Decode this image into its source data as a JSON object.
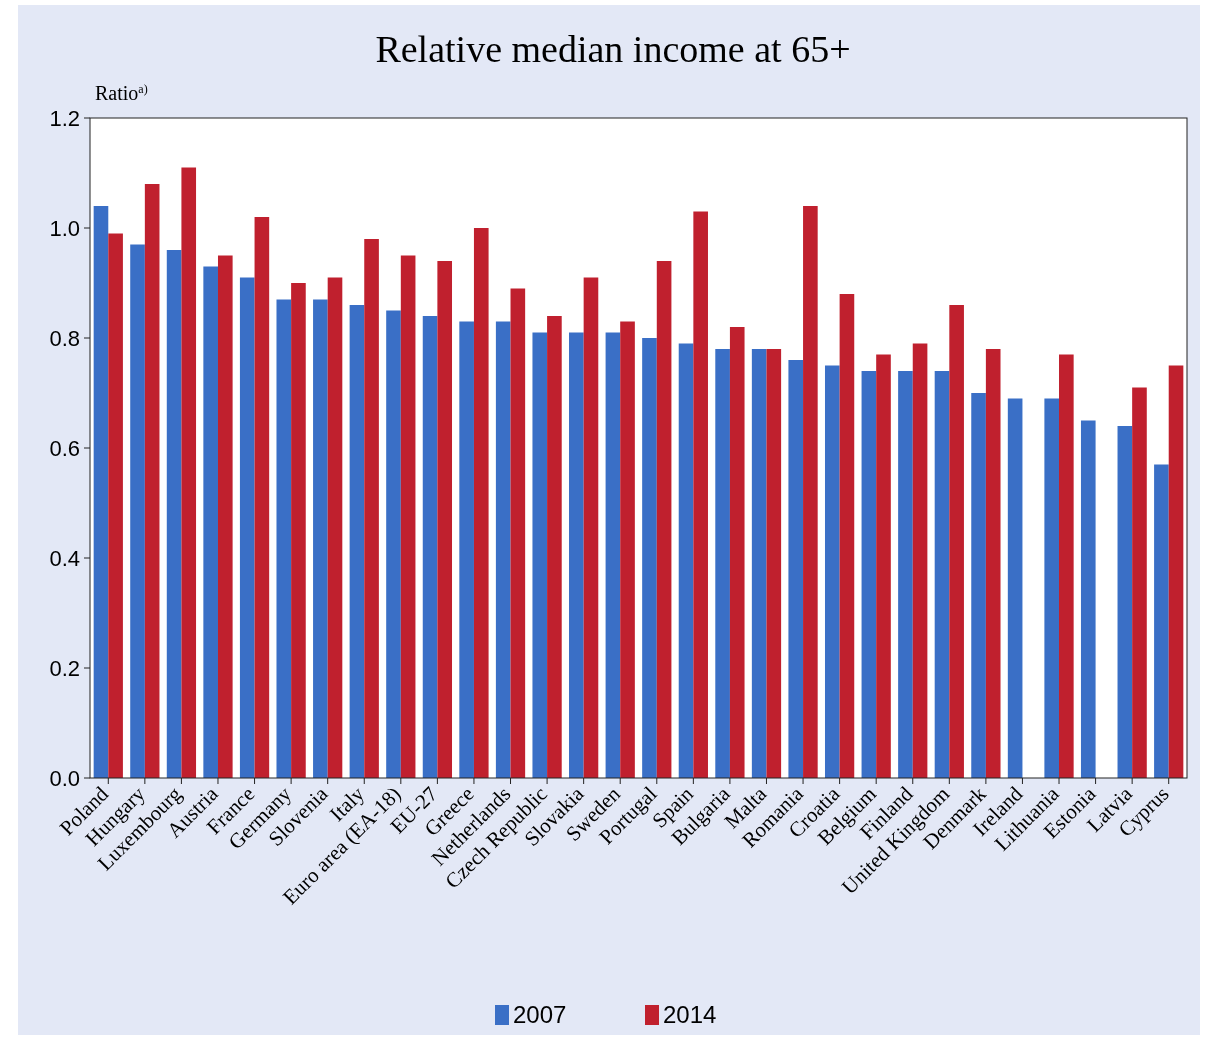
{
  "chart_data": {
    "type": "bar",
    "title": "Relative median income at 65+",
    "ylabel": "Ratio$^{a)}$",
    "categories": [
      "Poland",
      "Hungary",
      "Luxembourg",
      "Austria",
      "France",
      "Germany",
      "Slovenia",
      "Italy",
      "Euro area (EA-18)",
      "EU-27",
      "Greece",
      "Netherlands",
      "Czech Republic",
      "Slovakia",
      "Sweden",
      "Portugal",
      "Spain",
      "Bulgaria",
      "Malta",
      "Romania",
      "Croatia",
      "Belgium",
      "Finland",
      "United Kingdom",
      "Denmark",
      "Ireland",
      "Lithuania",
      "Estonia",
      "Latvia",
      "Cyprus"
    ],
    "series": [
      {
        "name": "2007",
        "color": "#3a6fc6",
        "values": [
          1.04,
          0.97,
          0.96,
          0.93,
          0.91,
          0.87,
          0.87,
          0.86,
          0.85,
          0.84,
          0.83,
          0.83,
          0.81,
          0.81,
          0.81,
          0.8,
          0.79,
          0.78,
          0.78,
          0.76,
          0.75,
          0.74,
          0.74,
          0.74,
          0.7,
          0.69,
          0.69,
          0.65,
          0.64,
          0.57
        ]
      },
      {
        "name": "2014",
        "color": "#c0202e",
        "values": [
          0.99,
          1.08,
          1.11,
          0.95,
          1.02,
          0.9,
          0.91,
          0.98,
          0.95,
          0.94,
          1.0,
          0.89,
          0.84,
          0.91,
          0.83,
          0.94,
          1.03,
          0.82,
          0.78,
          1.04,
          0.88,
          0.77,
          0.79,
          0.86,
          0.78,
          null,
          0.77,
          null,
          0.71,
          0.75
        ]
      }
    ],
    "ylim": [
      0,
      1.2
    ],
    "yticks": [
      {
        "value": 0,
        "label": "0.0"
      },
      0.2,
      0.4,
      0.6,
      0.8,
      {
        "value": 1,
        "label": "1.0"
      },
      1.2
    ],
    "grid": false,
    "legend": "bottom"
  }
}
